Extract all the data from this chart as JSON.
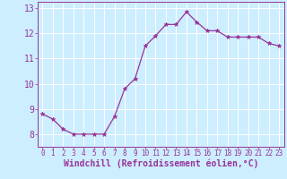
{
  "x": [
    0,
    1,
    2,
    3,
    4,
    5,
    6,
    7,
    8,
    9,
    10,
    11,
    12,
    13,
    14,
    15,
    16,
    17,
    18,
    19,
    20,
    21,
    22,
    23
  ],
  "y": [
    8.8,
    8.6,
    8.2,
    8.0,
    8.0,
    8.0,
    8.0,
    8.7,
    9.8,
    10.2,
    11.5,
    11.9,
    12.35,
    12.35,
    12.85,
    12.45,
    12.1,
    12.1,
    11.85,
    11.85,
    11.85,
    11.85,
    11.6,
    11.5
  ],
  "line_color": "#993399",
  "marker": "*",
  "marker_size": 3.5,
  "bg_color": "#cceeff",
  "grid_color": "#ffffff",
  "xlabel": "Windchill (Refroidissement éolien,°C)",
  "xlabel_color": "#993399",
  "tick_color": "#993399",
  "spine_color": "#993399",
  "ylim": [
    7.5,
    13.25
  ],
  "xlim": [
    -0.5,
    23.5
  ],
  "yticks": [
    8,
    9,
    10,
    11,
    12,
    13
  ],
  "xticks": [
    0,
    1,
    2,
    3,
    4,
    5,
    6,
    7,
    8,
    9,
    10,
    11,
    12,
    13,
    14,
    15,
    16,
    17,
    18,
    19,
    20,
    21,
    22,
    23
  ],
  "xlabel_fontsize": 7.0,
  "xtick_fontsize": 5.5,
  "ytick_fontsize": 7.0
}
